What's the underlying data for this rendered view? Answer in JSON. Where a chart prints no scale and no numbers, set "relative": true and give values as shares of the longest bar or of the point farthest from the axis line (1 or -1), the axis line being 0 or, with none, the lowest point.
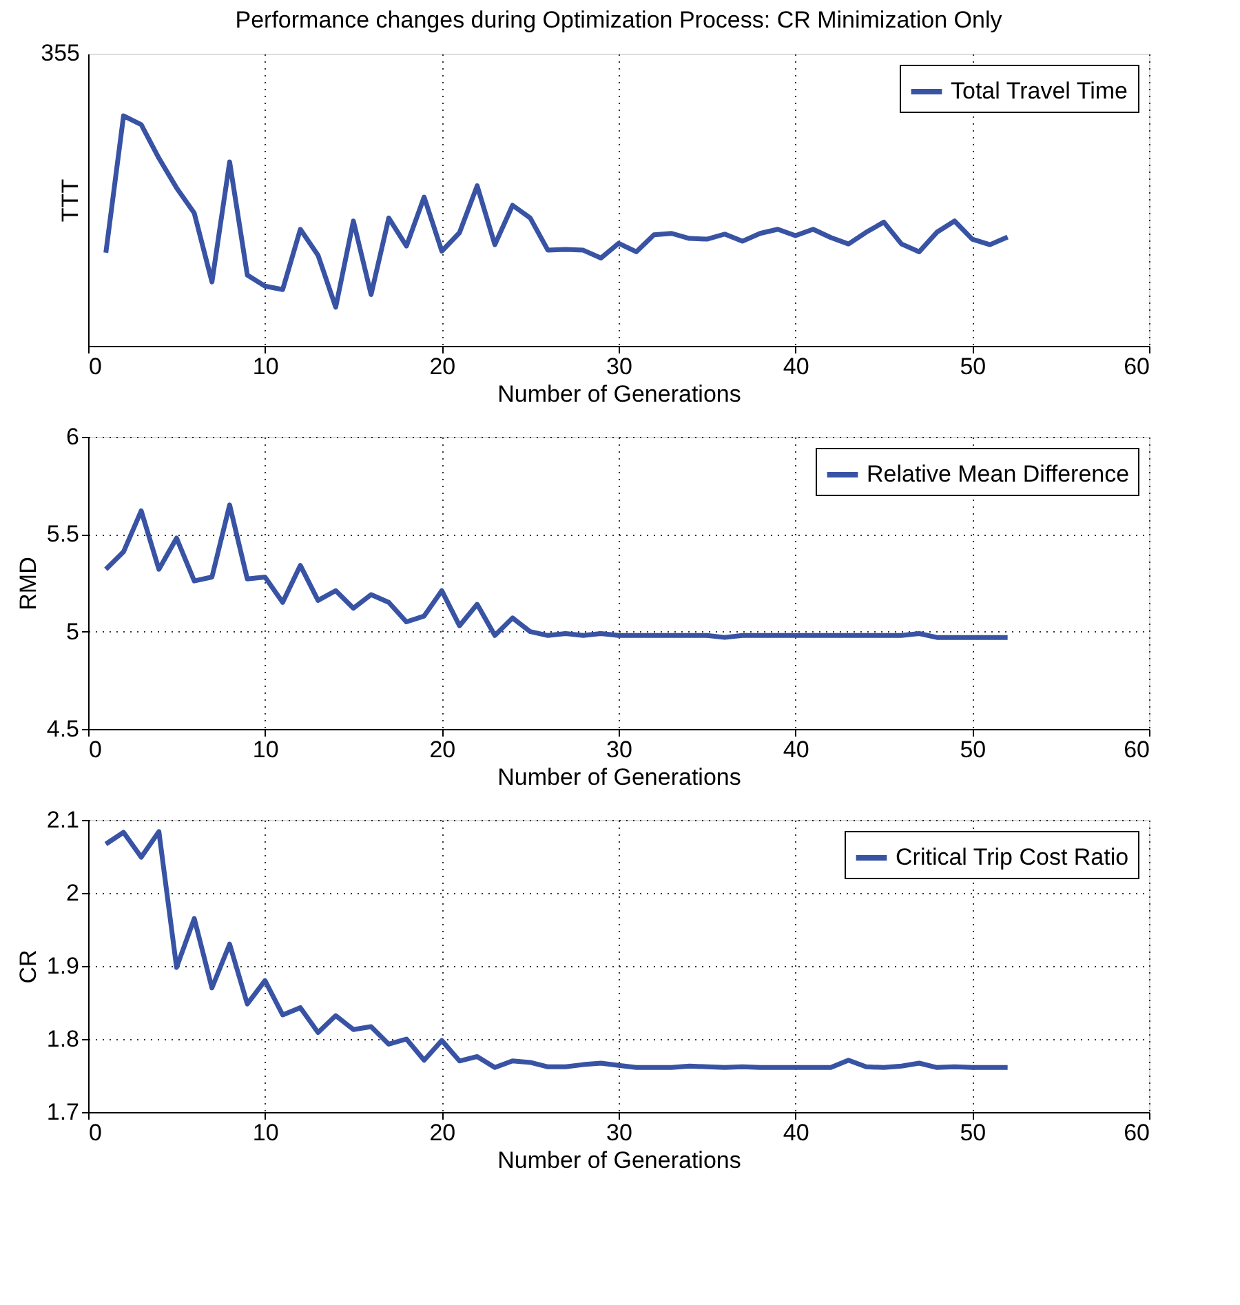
{
  "chart_data": [
    {
      "type": "line",
      "title": "Performance changes during Optimization Process: CR Minimization Only",
      "xlabel": "Number of Generations",
      "ylabel": "TTT",
      "relative": true,
      "ylim": [
        0,
        1.27
      ],
      "annotations": [
        "355"
      ],
      "xlim": [
        0,
        60
      ],
      "xticks": [
        0,
        10,
        20,
        30,
        40,
        50,
        60
      ],
      "grid": "x",
      "legend": "top right",
      "marker": "none",
      "line_style": "solid",
      "x": [
        1,
        2,
        3,
        4,
        5,
        6,
        7,
        8,
        9,
        10,
        11,
        12,
        13,
        14,
        15,
        16,
        17,
        18,
        19,
        20,
        21,
        22,
        23,
        24,
        25,
        26,
        27,
        28,
        29,
        30,
        31,
        32,
        33,
        34,
        35,
        36,
        37,
        38,
        39,
        40,
        41,
        42,
        43,
        44,
        45,
        46,
        47,
        48,
        49,
        50,
        51,
        52
      ],
      "series": [
        {
          "name": "Total Travel Time",
          "color": "#3953a4",
          "values": [
            0.405,
            1,
            0.962,
            0.816,
            0.687,
            0.577,
            0.278,
            0.8,
            0.308,
            0.26,
            0.245,
            0.507,
            0.394,
            0.168,
            0.543,
            0.223,
            0.556,
            0.434,
            0.647,
            0.412,
            0.492,
            0.696,
            0.44,
            0.611,
            0.556,
            0.416,
            0.419,
            0.416,
            0.382,
            0.446,
            0.409,
            0.483,
            0.489,
            0.467,
            0.464,
            0.486,
            0.455,
            0.489,
            0.507,
            0.479,
            0.507,
            0.471,
            0.443,
            0.494,
            0.538,
            0.443,
            0.409,
            0.494,
            0.543,
            0.464,
            0.44,
            0.473
          ]
        }
      ]
    },
    {
      "type": "line",
      "xlabel": "Number of Generations",
      "ylabel": "RMD",
      "xlim": [
        0,
        60
      ],
      "xticks": [
        0,
        10,
        20,
        30,
        40,
        50,
        60
      ],
      "ylim": [
        4.5,
        6
      ],
      "yticks": [
        4.5,
        5,
        5.5,
        6
      ],
      "grid": true,
      "legend": "top right",
      "marker": "none",
      "line_style": "solid",
      "x": [
        1,
        2,
        3,
        4,
        5,
        6,
        7,
        8,
        9,
        10,
        11,
        12,
        13,
        14,
        15,
        16,
        17,
        18,
        19,
        20,
        21,
        22,
        23,
        24,
        25,
        26,
        27,
        28,
        29,
        30,
        31,
        32,
        33,
        34,
        35,
        36,
        37,
        38,
        39,
        40,
        41,
        42,
        43,
        44,
        45,
        46,
        47,
        48,
        49,
        50,
        51,
        52
      ],
      "series": [
        {
          "name": "Relative Mean Difference",
          "color": "#3953a4",
          "values": [
            5.32,
            5.41,
            5.62,
            5.32,
            5.48,
            5.26,
            5.28,
            5.65,
            5.27,
            5.28,
            5.15,
            5.34,
            5.16,
            5.21,
            5.12,
            5.19,
            5.15,
            5.05,
            5.08,
            5.21,
            5.03,
            5.14,
            4.98,
            5.07,
            5.0,
            4.98,
            4.99,
            4.98,
            4.99,
            4.98,
            4.98,
            4.98,
            4.98,
            4.98,
            4.98,
            4.97,
            4.98,
            4.98,
            4.98,
            4.98,
            4.98,
            4.98,
            4.98,
            4.98,
            4.98,
            4.98,
            4.99,
            4.97,
            4.97,
            4.97,
            4.97,
            4.97
          ]
        }
      ]
    },
    {
      "type": "line",
      "xlabel": "Number of Generations",
      "ylabel": "CR",
      "xlim": [
        0,
        60
      ],
      "xticks": [
        0,
        10,
        20,
        30,
        40,
        50,
        60
      ],
      "ylim": [
        1.7,
        2.1
      ],
      "yticks": [
        1.7,
        1.8,
        1.9,
        2,
        2.1
      ],
      "grid": true,
      "legend": "top right",
      "marker": "none",
      "line_style": "solid",
      "x": [
        1,
        2,
        3,
        4,
        5,
        6,
        7,
        8,
        9,
        10,
        11,
        12,
        13,
        14,
        15,
        16,
        17,
        18,
        19,
        20,
        21,
        22,
        23,
        24,
        25,
        26,
        27,
        28,
        29,
        30,
        31,
        32,
        33,
        34,
        35,
        36,
        37,
        38,
        39,
        40,
        41,
        42,
        43,
        44,
        45,
        46,
        47,
        48,
        49,
        50,
        51,
        52
      ],
      "series": [
        {
          "name": "Critical Trip Cost Ratio",
          "color": "#3953a4",
          "values": [
            2.067,
            2.083,
            2.049,
            2.084,
            1.898,
            1.965,
            1.87,
            1.93,
            1.848,
            1.88,
            1.833,
            1.843,
            1.809,
            1.832,
            1.813,
            1.817,
            1.793,
            1.8,
            1.771,
            1.798,
            1.77,
            1.776,
            1.761,
            1.77,
            1.768,
            1.762,
            1.762,
            1.765,
            1.767,
            1.764,
            1.761,
            1.761,
            1.761,
            1.763,
            1.762,
            1.761,
            1.762,
            1.761,
            1.761,
            1.761,
            1.761,
            1.761,
            1.771,
            1.762,
            1.761,
            1.763,
            1.767,
            1.761,
            1.762,
            1.761,
            1.761,
            1.761
          ]
        }
      ]
    }
  ]
}
